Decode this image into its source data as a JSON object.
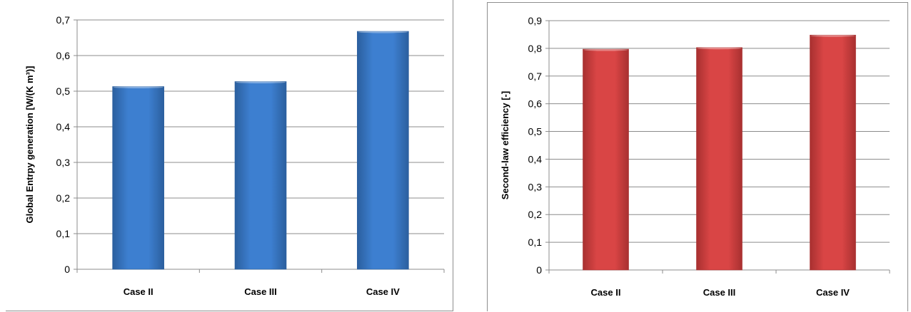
{
  "chart_data": [
    {
      "type": "bar",
      "categories": [
        "Case II",
        "Case III",
        "Case IV"
      ],
      "values": [
        0.513,
        0.527,
        0.668
      ],
      "ylabel": "Global Entrpy generation [W/(K m³)]",
      "ylim": [
        0,
        0.7
      ],
      "yticks": [
        "0",
        "0,1",
        "0,2",
        "0,3",
        "0,4",
        "0,5",
        "0,6",
        "0,7"
      ],
      "grid": true,
      "bar_color": "#3d7fd0",
      "bar_color_dark": "#2b5f9e"
    },
    {
      "type": "bar",
      "categories": [
        "Case II",
        "Case III",
        "Case IV"
      ],
      "values": [
        0.797,
        0.803,
        0.848
      ],
      "ylabel": "Second-law efficiency [-]",
      "ylim": [
        0,
        0.9
      ],
      "yticks": [
        "0",
        "0,1",
        "0,2",
        "0,3",
        "0,4",
        "0,5",
        "0,6",
        "0,7",
        "0,8",
        "0,9"
      ],
      "grid": true,
      "bar_color": "#d94545",
      "bar_color_dark": "#a83030"
    }
  ]
}
